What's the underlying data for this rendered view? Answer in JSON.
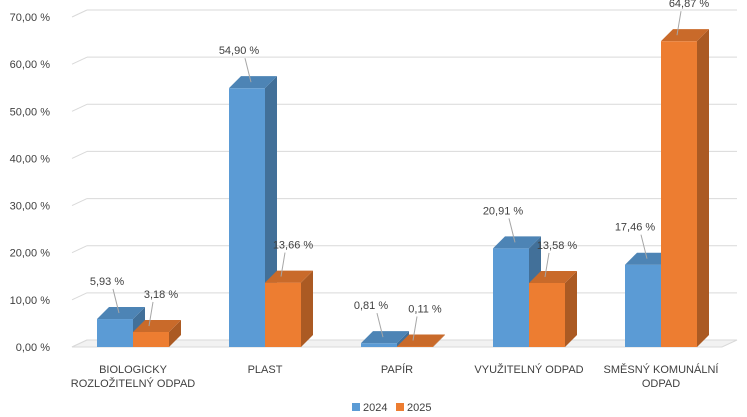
{
  "chart_data": {
    "type": "bar",
    "title": "",
    "xlabel": "",
    "ylabel": "",
    "ylim": [
      0,
      70
    ],
    "yticks": [
      0,
      10,
      20,
      30,
      40,
      50,
      60,
      70
    ],
    "ytick_labels": [
      "0,00 %",
      "10,00 %",
      "20,00 %",
      "30,00 %",
      "40,00 %",
      "50,00 %",
      "60,00 %",
      "70,00 %"
    ],
    "grid": true,
    "three_d": true,
    "legend_position": "bottom",
    "categories": [
      [
        "BIOLOGICKY",
        "ROZLOŽITELNÝ ODPAD"
      ],
      [
        "PLAST"
      ],
      [
        "PAPÍR"
      ],
      [
        "VYUŽITELNÝ ODPAD"
      ],
      [
        "SMĚSNÝ KOMUNÁLNÍ",
        "ODPAD"
      ]
    ],
    "series": [
      {
        "name": "2024",
        "color": "#5B9BD5",
        "values": [
          5.93,
          54.9,
          0.81,
          20.91,
          17.46
        ],
        "labels": [
          "5,93 %",
          "54,90 %",
          "0,81 %",
          "20,91 %",
          "17,46 %"
        ]
      },
      {
        "name": "2025",
        "color": "#ED7D31",
        "values": [
          3.18,
          13.66,
          0.11,
          13.58,
          64.87
        ],
        "labels": [
          "3,18 %",
          "13,66 %",
          "0,11 %",
          "13,58 %",
          "64,87 %"
        ]
      }
    ]
  }
}
